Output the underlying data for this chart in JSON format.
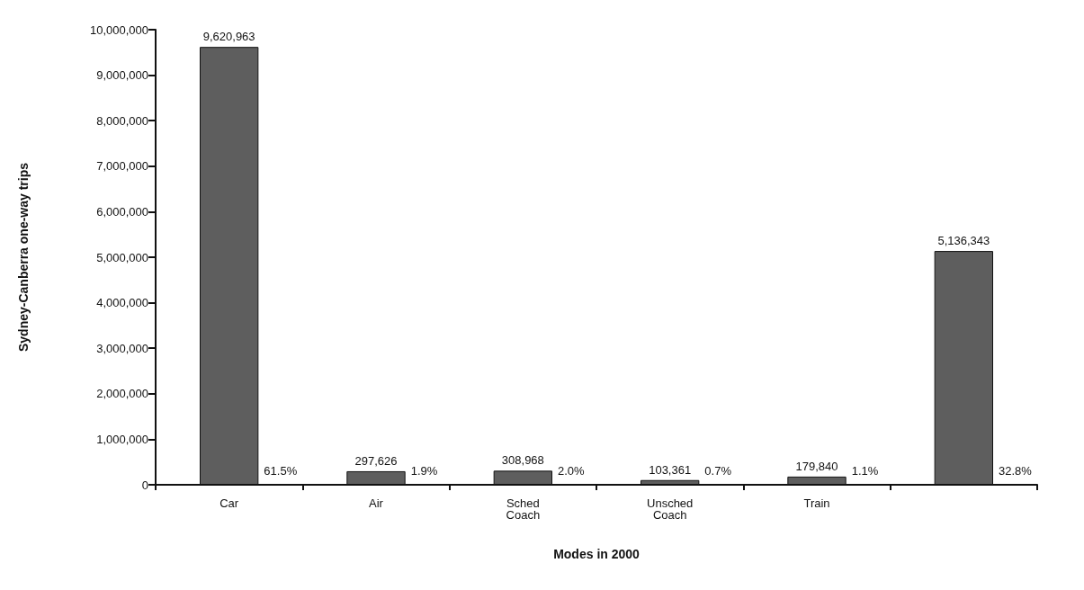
{
  "chart_data": {
    "type": "bar",
    "xlabel": "Modes in 2000",
    "ylabel": "Sydney-Canberra one-way trips",
    "categories": [
      "Car",
      "Air",
      "Sched\nCoach",
      "Unsched\nCoach",
      "Train",
      null
    ],
    "values": [
      9620963,
      297626,
      308968,
      103361,
      179840,
      5136343
    ],
    "value_labels": [
      "9,620,963",
      "297,626",
      "308,968",
      "103,361",
      "179,840",
      "5,136,343"
    ],
    "color": "#5e5e5e",
    "ylim": [
      0,
      10000000
    ],
    "yticks": [
      0,
      {
        "value": 1000000,
        "label": "1,000,000"
      },
      {
        "value": 2000000,
        "label": "2,000,000"
      },
      {
        "value": 3000000,
        "label": "3,000,000"
      },
      {
        "value": 4000000,
        "label": "4,000,000"
      },
      {
        "value": 5000000,
        "label": "5,000,000"
      },
      {
        "value": 6000000,
        "label": "6,000,000"
      },
      {
        "value": 7000000,
        "label": "7,000,000"
      },
      {
        "value": 8000000,
        "label": "8,000,000"
      },
      {
        "value": 9000000,
        "label": "9,000,000"
      },
      {
        "value": 10000000,
        "label": "10,000,000"
      }
    ],
    "grid": false,
    "annotations": [
      "61.5%",
      "1.9%",
      "2.0%",
      "0.7%",
      "1.1%",
      "32.8%"
    ]
  }
}
